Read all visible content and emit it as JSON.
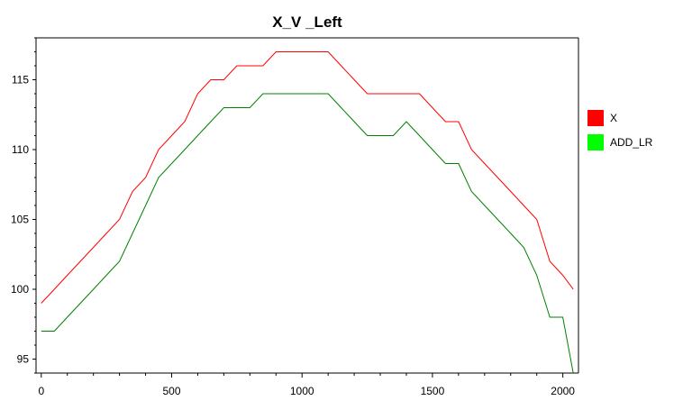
{
  "chart_data": {
    "type": "line",
    "title": "X_V _Left",
    "xlabel": "",
    "ylabel": "",
    "xlim": [
      -20,
      2060
    ],
    "ylim": [
      94,
      118
    ],
    "x_ticks": [
      0,
      500,
      1000,
      1500,
      2000
    ],
    "y_ticks": [
      95,
      100,
      105,
      110,
      115
    ],
    "grid": false,
    "legend_position": "right",
    "series": [
      {
        "name": "X",
        "color": "#ff0000",
        "points": [
          [
            0,
            99
          ],
          [
            50,
            100
          ],
          [
            100,
            101
          ],
          [
            150,
            102
          ],
          [
            200,
            103
          ],
          [
            250,
            104
          ],
          [
            300,
            105
          ],
          [
            350,
            107
          ],
          [
            400,
            108
          ],
          [
            450,
            110
          ],
          [
            500,
            111
          ],
          [
            550,
            112
          ],
          [
            600,
            114
          ],
          [
            650,
            115
          ],
          [
            700,
            115
          ],
          [
            750,
            116
          ],
          [
            800,
            116
          ],
          [
            850,
            116
          ],
          [
            900,
            117
          ],
          [
            950,
            117
          ],
          [
            1000,
            117
          ],
          [
            1050,
            117
          ],
          [
            1100,
            117
          ],
          [
            1150,
            116
          ],
          [
            1200,
            115
          ],
          [
            1250,
            114
          ],
          [
            1300,
            114
          ],
          [
            1350,
            114
          ],
          [
            1400,
            114
          ],
          [
            1450,
            114
          ],
          [
            1500,
            113
          ],
          [
            1550,
            112
          ],
          [
            1600,
            112
          ],
          [
            1650,
            110
          ],
          [
            1700,
            109
          ],
          [
            1750,
            108
          ],
          [
            1800,
            107
          ],
          [
            1850,
            106
          ],
          [
            1900,
            105
          ],
          [
            1950,
            102
          ],
          [
            2000,
            101
          ],
          [
            2040,
            100
          ]
        ]
      },
      {
        "name": "ADD_LR",
        "color": "#008000",
        "points": [
          [
            0,
            97
          ],
          [
            50,
            97
          ],
          [
            100,
            98
          ],
          [
            150,
            99
          ],
          [
            200,
            100
          ],
          [
            250,
            101
          ],
          [
            300,
            102
          ],
          [
            350,
            104
          ],
          [
            400,
            106
          ],
          [
            450,
            108
          ],
          [
            500,
            109
          ],
          [
            550,
            110
          ],
          [
            600,
            111
          ],
          [
            650,
            112
          ],
          [
            700,
            113
          ],
          [
            750,
            113
          ],
          [
            800,
            113
          ],
          [
            850,
            114
          ],
          [
            900,
            114
          ],
          [
            950,
            114
          ],
          [
            1000,
            114
          ],
          [
            1050,
            114
          ],
          [
            1100,
            114
          ],
          [
            1150,
            113
          ],
          [
            1200,
            112
          ],
          [
            1250,
            111
          ],
          [
            1300,
            111
          ],
          [
            1350,
            111
          ],
          [
            1400,
            112
          ],
          [
            1450,
            111
          ],
          [
            1500,
            110
          ],
          [
            1550,
            109
          ],
          [
            1600,
            109
          ],
          [
            1650,
            107
          ],
          [
            1700,
            106
          ],
          [
            1750,
            105
          ],
          [
            1800,
            104
          ],
          [
            1850,
            103
          ],
          [
            1900,
            101
          ],
          [
            1950,
            98
          ],
          [
            2000,
            98
          ],
          [
            2040,
            94
          ]
        ]
      }
    ]
  }
}
